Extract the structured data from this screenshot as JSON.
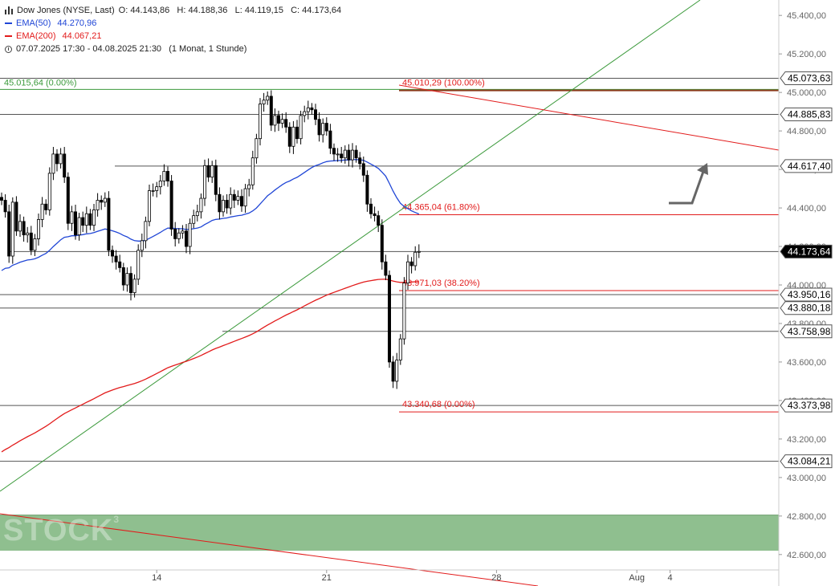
{
  "header": {
    "instrument": "Dow Jones (NYSE, Last)",
    "ohlc": "O: 44.143,86   H: 44.188,36   L: 44.119,15   C: 44.173,64",
    "ema50_label": "EMA(50)",
    "ema50_value": "44.270,96",
    "ema200_label": "EMA(200)",
    "ema200_value": "44.067,21",
    "period": "07.07.2025 17:30 - 04.08.2025 21:30   (1 Monat, 1 Stunde)"
  },
  "colors": {
    "up": "#ffffff",
    "down": "#000000",
    "ema50": "#2046d6",
    "ema200": "#e21b1b",
    "trend_green": "#3c9a3c",
    "fib": "#e21b1b",
    "zone": "#8fbf8f",
    "price_tag": "#000000",
    "top_fib_line": "#8b3a1a"
  },
  "watermark": "STOCK",
  "watermark_sup": "3",
  "chart_data": {
    "type": "candlestick",
    "timeframe": "1 hour",
    "ylim": [
      42520,
      45480
    ],
    "y_ticks": [
      "42.600,00",
      "42.800,00",
      "43.000,00",
      "43.200,00",
      "43.400,00",
      "43.600,00",
      "43.800,00",
      "44.000,00",
      "44.200,00",
      "44.400,00",
      "44.600,00",
      "44.800,00",
      "45.000,00",
      "45.200,00",
      "45.400,00"
    ],
    "y_tick_values": [
      42600,
      42800,
      43000,
      43200,
      43400,
      43600,
      43800,
      44000,
      44200,
      44400,
      44600,
      44800,
      45000,
      45200,
      45400
    ],
    "x_ticks": [
      {
        "label": "14",
        "bar": 42
      },
      {
        "label": "21",
        "bar": 88
      },
      {
        "label": "28",
        "bar": 134
      },
      {
        "label": "Aug",
        "bar": 172
      },
      {
        "label": "4",
        "bar": 181
      }
    ],
    "price_tags": [
      {
        "label": "45.073,63",
        "value": 45073.63,
        "highlight": false
      },
      {
        "label": "44.885,83",
        "value": 44885.83,
        "highlight": false
      },
      {
        "label": "44.617,40",
        "value": 44617.4,
        "highlight": false
      },
      {
        "label": "44.173,64",
        "value": 44173.64,
        "highlight": true
      },
      {
        "label": "43.950,16",
        "value": 43950.16,
        "highlight": false
      },
      {
        "label": "43.880,18",
        "value": 43880.18,
        "highlight": false
      },
      {
        "label": "43.758,98",
        "value": 43758.98,
        "highlight": false
      },
      {
        "label": "43.373,98",
        "value": 43373.98,
        "highlight": false
      },
      {
        "label": "43.084,21",
        "value": 43084.21,
        "highlight": false
      }
    ],
    "fib_levels": [
      {
        "label": "45.010,29 (100.00%)",
        "value": 45010.29
      },
      {
        "label": "44.365,04 (61.80%)",
        "value": 44365.04
      },
      {
        "label": "43.971,03 (38.20%)",
        "value": 43971.03
      },
      {
        "label": "43.340,68 (0.00%)",
        "value": 43340.68
      }
    ],
    "green_level": {
      "label": "45.015,64 (0.00%)",
      "value": 45015.64
    },
    "support_zone": [
      42620,
      42805
    ],
    "closes": [
      44440,
      44380,
      44150,
      44430,
      44280,
      44330,
      44260,
      44270,
      44180,
      44240,
      44340,
      44420,
      44390,
      44580,
      44680,
      44630,
      44680,
      44560,
      44320,
      44380,
      44260,
      44350,
      44310,
      44370,
      44310,
      44390,
      44440,
      44430,
      44450,
      44180,
      44150,
      44120,
      44090,
      44000,
      44060,
      43960,
      44030,
      44180,
      44230,
      44330,
      44490,
      44490,
      44510,
      44540,
      44590,
      44540,
      44290,
      44240,
      44270,
      44280,
      44200,
      44320,
      44360,
      44380,
      44450,
      44620,
      44560,
      44620,
      44470,
      44380,
      44440,
      44400,
      44470,
      44440,
      44460,
      44410,
      44500,
      44520,
      44660,
      44760,
      44940,
      44960,
      44980,
      44830,
      44880,
      44840,
      44860,
      44820,
      44720,
      44820,
      44760,
      44880,
      44900,
      44920,
      44910,
      44860,
      44780,
      44840,
      44800,
      44710,
      44680,
      44680,
      44660,
      44700,
      44650,
      44700,
      44660,
      44630,
      44570,
      44420,
      44370,
      44360,
      44310,
      44120,
      44050,
      43600,
      43500,
      43610,
      43720,
      44010,
      44120,
      44100,
      44170,
      44174
    ]
  }
}
